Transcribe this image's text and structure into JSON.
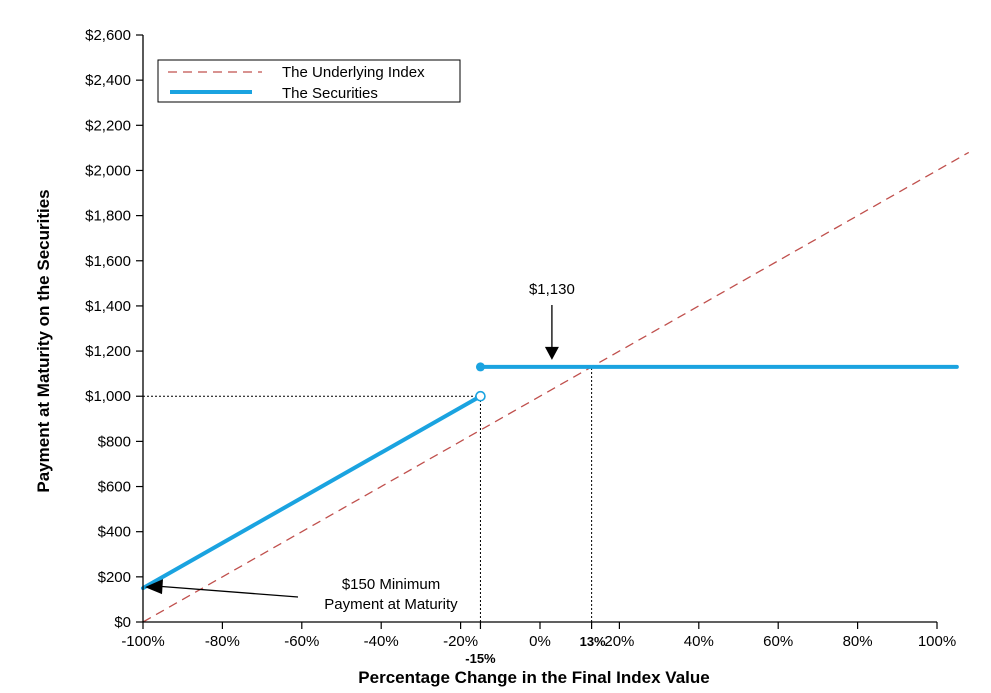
{
  "chart_data": {
    "type": "line",
    "xlabel": "Percentage Change in the Final Index Value",
    "ylabel": "Payment at Maturity on the Securities",
    "xlim": [
      -100,
      100
    ],
    "ylim": [
      0,
      2600
    ],
    "x_ticks": [
      -100,
      -80,
      -60,
      -40,
      -20,
      0,
      20,
      40,
      60,
      80,
      100
    ],
    "x_tick_labels": [
      "-100%",
      "-80%",
      "-60%",
      "-40%",
      "-20%",
      "0%",
      "20%",
      "40%",
      "60%",
      "80%",
      "100%"
    ],
    "y_ticks": [
      0,
      200,
      400,
      600,
      800,
      1000,
      1200,
      1400,
      1600,
      1800,
      2000,
      2200,
      2400,
      2600
    ],
    "y_tick_labels": [
      "$0",
      "$200",
      "$400",
      "$600",
      "$800",
      "$1,000",
      "$1,200",
      "$1,400",
      "$1,600",
      "$1,800",
      "$2,000",
      "$2,200",
      "$2,400",
      "$2,600"
    ],
    "legend": {
      "position": "top-left",
      "entries": [
        {
          "label": "The Underlying Index",
          "style": "dashed",
          "color": "#c0504d"
        },
        {
          "label": "The Securities",
          "style": "solid",
          "color": "#1aa3e0"
        }
      ]
    },
    "series": [
      {
        "name": "The Underlying Index",
        "style": "dashed",
        "color": "#c0504d",
        "x": [
          -100,
          108
        ],
        "y": [
          0,
          2080
        ]
      },
      {
        "name": "The Securities",
        "style": "solid",
        "color": "#1aa3e0",
        "segments": [
          {
            "x": [
              -100,
              -15
            ],
            "y": [
              150,
              1000
            ],
            "end_marker": "open-circle"
          },
          {
            "x": [
              -15,
              105
            ],
            "y": [
              1130,
              1130
            ],
            "start_marker": "filled-circle"
          }
        ]
      }
    ],
    "reference_lines": {
      "horizontal": [
        {
          "y": 1000,
          "from_x": -100,
          "to_x": -15
        }
      ],
      "vertical": [
        {
          "x": -15,
          "from_y": 0,
          "to_y": 1000
        },
        {
          "x": 13,
          "from_y": 0,
          "to_y": 1130
        }
      ]
    },
    "extra_x_markers": [
      {
        "x": -15,
        "label": "-15%"
      },
      {
        "x": 13,
        "label": "13%"
      }
    ],
    "annotations": [
      {
        "text": "$1,130",
        "points_to": {
          "x": 3,
          "y": 1130
        }
      },
      {
        "lines": [
          "$150 Minimum",
          "Payment at Maturity"
        ],
        "points_to": {
          "x": -100,
          "y": 150
        }
      }
    ]
  }
}
